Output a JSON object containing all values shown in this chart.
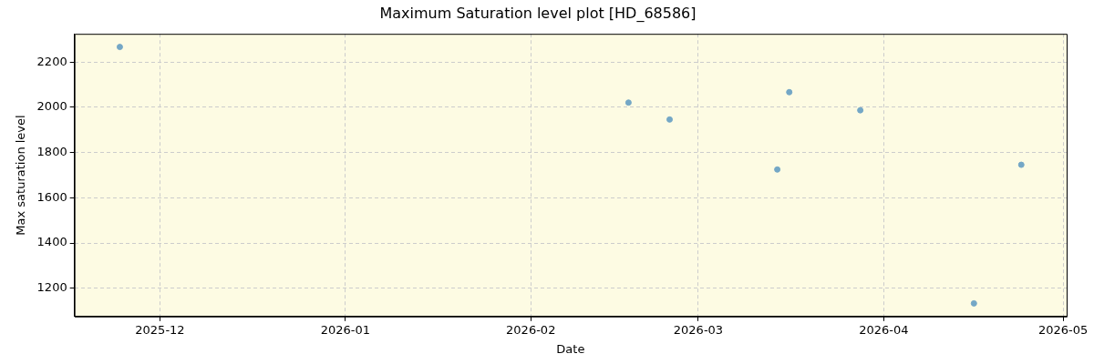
{
  "chart_data": {
    "type": "scatter",
    "title": "Maximum Saturation level plot [HD_68586]",
    "xlabel": "Date",
    "ylabel": "Max saturation level",
    "x": [
      "2025-11-24T07:00",
      "2026-02-17T08:00",
      "2026-02-24T05:00",
      "2026-03-14T05:00",
      "2026-03-16T05:00",
      "2026-03-28T02:00",
      "2026-04-16T02:00",
      "2026-04-24T00:00"
    ],
    "series": [
      {
        "color": "#74a7c6",
        "values": [
          2267,
          2021,
          1946,
          1725,
          2067,
          1987,
          1133,
          1746
        ]
      }
    ],
    "xlim": [
      "2025-11-16T17:00",
      "2026-05-01T14:00"
    ],
    "xticks": [
      {
        "value": "2025-12-01",
        "label": "2025-12"
      },
      {
        "value": "2026-01-01",
        "label": "2026-01"
      },
      {
        "value": "2026-02-01",
        "label": "2026-02"
      },
      {
        "value": "2026-03-01",
        "label": "2026-03"
      },
      {
        "value": "2026-04-01",
        "label": "2026-04"
      },
      {
        "value": "2026-05-01",
        "label": "2026-05"
      }
    ],
    "ylim": [
      1075,
      2325
    ],
    "yticks": [
      1200,
      1400,
      1600,
      1800,
      2000,
      2200
    ],
    "grid": true,
    "marker": "circle",
    "legend": false
  }
}
